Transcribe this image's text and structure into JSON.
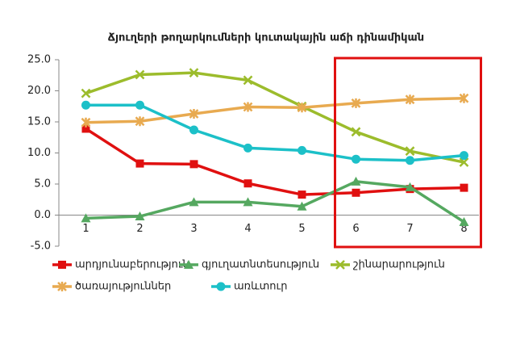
{
  "chart_data": {
    "type": "line",
    "title": "Ճյուղերի թողարկումների կուտակային աճի դինամիկան",
    "categories": [
      "1",
      "2",
      "3",
      "4",
      "5",
      "6",
      "7",
      "8"
    ],
    "series": [
      {
        "name": "արդյունաբերություն",
        "color": "#e01010",
        "marker": "square",
        "values": [
          13.9,
          8.3,
          8.2,
          5.1,
          3.3,
          3.6,
          4.2,
          4.4
        ]
      },
      {
        "name": "գյուղատնտեսություն",
        "color": "#55a860",
        "marker": "triangle",
        "values": [
          -0.5,
          -0.2,
          2.1,
          2.1,
          1.4,
          5.4,
          4.5,
          -1.1
        ]
      },
      {
        "name": "շինարարություն",
        "color": "#9cbc2c",
        "marker": "x",
        "values": [
          19.6,
          22.6,
          22.9,
          21.7,
          17.5,
          13.4,
          10.3,
          8.5
        ]
      },
      {
        "name": "ծառայություններ",
        "color": "#e8aa50",
        "marker": "star",
        "values": [
          14.9,
          15.1,
          16.3,
          17.4,
          17.3,
          18.0,
          18.6,
          18.8
        ]
      },
      {
        "name": "առևտուր",
        "color": "#1cc0c8",
        "marker": "circle",
        "values": [
          17.7,
          17.7,
          13.7,
          10.8,
          10.4,
          9.0,
          8.8,
          9.6
        ]
      }
    ],
    "ylim": [
      -5,
      25
    ],
    "yticks": [
      {
        "value": -5,
        "label": "-5.0"
      },
      {
        "value": 0,
        "label": "0.0"
      },
      {
        "value": 5,
        "label": "5.0"
      },
      {
        "value": 10,
        "label": "10.0"
      },
      {
        "value": 15,
        "label": "15.0"
      },
      {
        "value": 20,
        "label": "20.0"
      },
      {
        "value": 25,
        "label": "25.0"
      }
    ],
    "grid": false
  }
}
